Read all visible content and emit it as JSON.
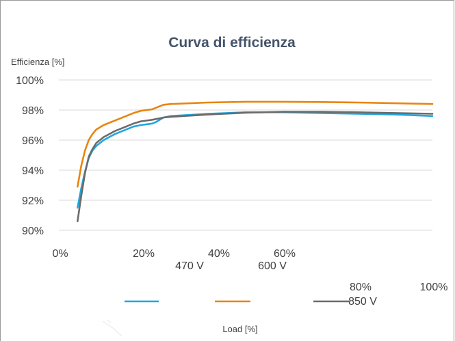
{
  "chart_data": {
    "type": "line",
    "title": "Curva di efficienza",
    "ylabel": "Efficienza [%]",
    "xlabel": "Load [%]",
    "ylim": [
      90,
      100
    ],
    "xlim": [
      0,
      100
    ],
    "y_ticks": [
      "90%",
      "92%",
      "94%",
      "96%",
      "98%",
      "100%"
    ],
    "x_ticks": [
      "0%",
      "20%",
      "40%",
      "60%",
      "80%",
      "100%"
    ],
    "grid": "horizontal",
    "legend_position": "bottom",
    "series": [
      {
        "name": "470 V",
        "color": "#1ea7e1",
        "x": [
          5,
          6,
          7,
          8,
          9,
          10,
          12,
          15,
          18,
          20,
          22,
          25,
          26,
          28,
          30,
          40,
          50,
          60,
          70,
          80,
          90,
          100
        ],
        "y": [
          91.5,
          92.8,
          93.9,
          94.8,
          95.3,
          95.6,
          96.0,
          96.4,
          96.7,
          96.9,
          97.0,
          97.1,
          97.2,
          97.5,
          97.6,
          97.75,
          97.85,
          97.85,
          97.8,
          97.75,
          97.7,
          97.6
        ]
      },
      {
        "name": "600 V",
        "color": "#e8850c",
        "x": [
          5,
          6,
          7,
          8,
          9,
          10,
          12,
          15,
          18,
          20,
          22,
          25,
          26,
          28,
          30,
          40,
          50,
          60,
          70,
          80,
          90,
          100
        ],
        "y": [
          92.9,
          94.3,
          95.3,
          96.0,
          96.4,
          96.7,
          97.0,
          97.3,
          97.6,
          97.8,
          97.95,
          98.05,
          98.15,
          98.35,
          98.4,
          98.5,
          98.55,
          98.55,
          98.53,
          98.5,
          98.45,
          98.4
        ]
      },
      {
        "name": "850 V",
        "color": "#6b6b6b",
        "x": [
          5,
          6,
          7,
          8,
          9,
          10,
          12,
          15,
          18,
          20,
          22,
          25,
          26,
          28,
          30,
          40,
          50,
          60,
          70,
          80,
          90,
          100
        ],
        "y": [
          90.6,
          92.3,
          93.8,
          94.9,
          95.4,
          95.8,
          96.2,
          96.6,
          96.9,
          97.1,
          97.25,
          97.35,
          97.4,
          97.5,
          97.55,
          97.7,
          97.82,
          97.88,
          97.88,
          97.85,
          97.8,
          97.75
        ]
      }
    ]
  }
}
